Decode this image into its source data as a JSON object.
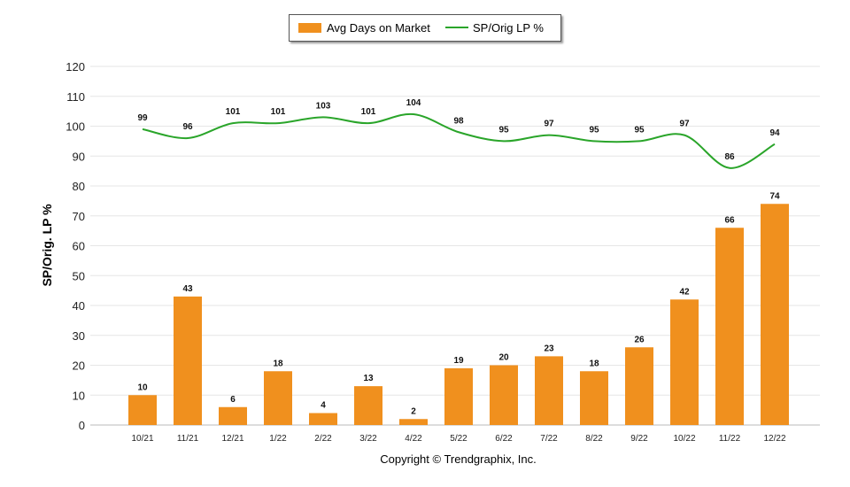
{
  "chart_data": {
    "type": "bar",
    "categories": [
      "10/21",
      "11/21",
      "12/21",
      "1/22",
      "2/22",
      "3/22",
      "4/22",
      "5/22",
      "6/22",
      "7/22",
      "8/22",
      "9/22",
      "10/22",
      "11/22",
      "12/22"
    ],
    "series": [
      {
        "name": "Avg Days on Market",
        "type": "bar",
        "color": "#f0901e",
        "values": [
          10,
          43,
          6,
          18,
          4,
          13,
          2,
          19,
          20,
          23,
          18,
          26,
          42,
          66,
          74
        ]
      },
      {
        "name": "SP/Orig LP %",
        "type": "line",
        "color": "#2aa52a",
        "values": [
          99,
          96,
          101,
          101,
          103,
          101,
          104,
          98,
          95,
          97,
          95,
          95,
          97,
          86,
          94
        ]
      }
    ],
    "ylabel": "SP/Orig. LP %",
    "xlabel": "",
    "ylim": [
      0,
      120
    ],
    "yticks": [
      0,
      10,
      20,
      30,
      40,
      50,
      60,
      70,
      80,
      90,
      100,
      110,
      120
    ],
    "grid": true,
    "legend_position": "top-center"
  },
  "footer": {
    "copyright": "Copyright © Trendgraphix, Inc."
  }
}
